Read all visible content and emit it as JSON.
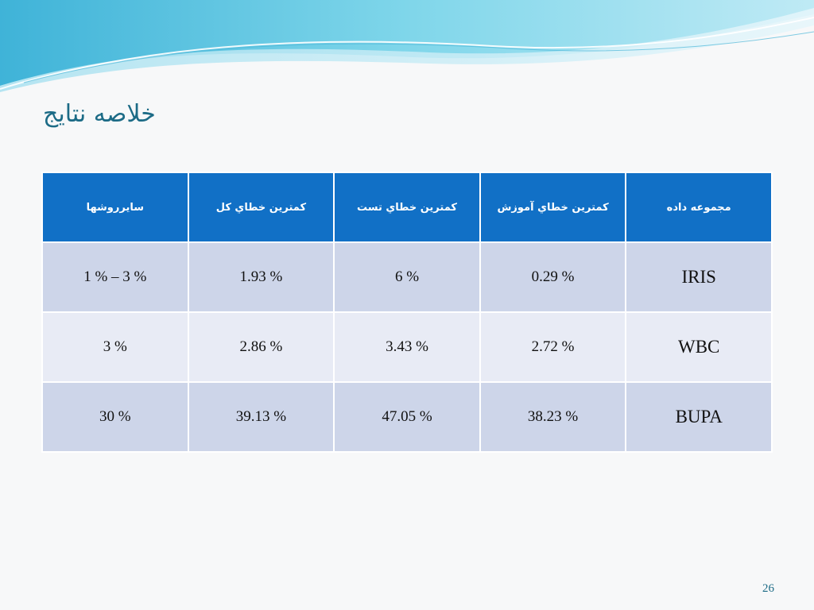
{
  "slide": {
    "title": "خلاصه نتايج",
    "page_number": "26"
  },
  "table": {
    "headers": [
      "سايرروشها",
      "کمترين خطاي کل",
      "کمترين خطاي تست",
      "کمترين خطاي آموزش",
      "مجموعه داده"
    ],
    "rows": [
      [
        "1 % – 3 %",
        "1.93 %",
        "6 %",
        "0.29 %",
        "IRIS"
      ],
      [
        "3 %",
        "2.86 %",
        "3.43 %",
        "2.72 %",
        "WBC"
      ],
      [
        "30 %",
        "39.13 %",
        "47.05 %",
        "38.23 %",
        "BUPA"
      ]
    ]
  },
  "colors": {
    "header_bg": "#1170c6",
    "row_odd_bg": "#cdd5e9",
    "row_even_bg": "#e8ebf5",
    "title_color": "#1c6b86",
    "accent_wave": "#5cc3dd"
  }
}
